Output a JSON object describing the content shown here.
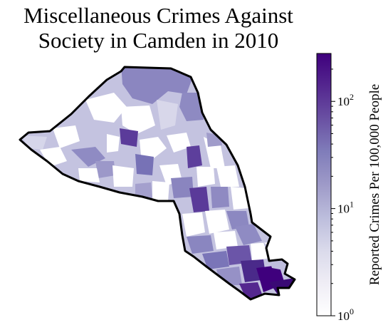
{
  "title": {
    "line1": "Miscellaneous Crimes Against",
    "line2": "Society in Camden in 2010"
  },
  "colorbar": {
    "label": "Reported Crimes Per 100,000 People",
    "scale": "log",
    "range": [
      1,
      280
    ],
    "ticks": [
      {
        "value": 1,
        "base": "10",
        "exp": "0"
      },
      {
        "value": 10,
        "base": "10",
        "exp": "1"
      },
      {
        "value": 100,
        "base": "10",
        "exp": "2"
      }
    ],
    "colors": [
      "#ffffff",
      "#efedf5",
      "#dadaeb",
      "#bcbddc",
      "#9e9ac8",
      "#807dba",
      "#6a51a3",
      "#54278f",
      "#3f007d"
    ]
  },
  "map": {
    "region": "Camden",
    "year": "2010",
    "outline_color": "#000000",
    "no_data_color": "#ffffff"
  }
}
